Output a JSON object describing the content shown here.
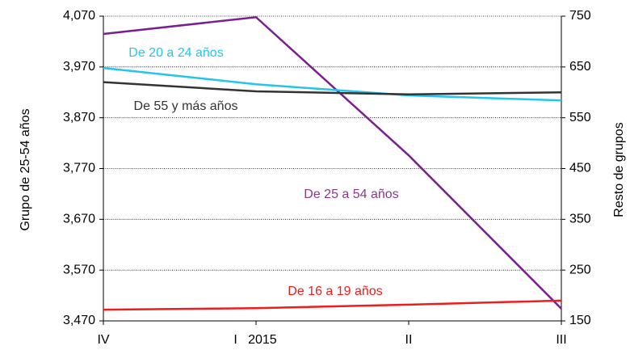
{
  "chart_data": {
    "type": "line",
    "y_label": "Grupo de 25-54 años",
    "y2_label": "Resto de grupos",
    "categories": [
      "IV",
      "I   2015",
      "II",
      "III"
    ],
    "ylim": [
      3470,
      4070
    ],
    "yticks": [
      {
        "value": 3470,
        "label": "3,470"
      },
      {
        "value": 3570,
        "label": "3,570"
      },
      {
        "value": 3670,
        "label": "3,670"
      },
      {
        "value": 3770,
        "label": "3,770"
      },
      {
        "value": 3870,
        "label": "3,870"
      },
      {
        "value": 3970,
        "label": "3,970"
      },
      {
        "value": 4070,
        "label": "4,070"
      }
    ],
    "y2lim": [
      150,
      750
    ],
    "y2ticks": [
      150,
      250,
      350,
      450,
      550,
      650,
      750
    ],
    "grid": true,
    "series": [
      {
        "name": "De 25 a 54 años",
        "color": "#7b1f8f",
        "label_color": "#8a3a86",
        "values": [
          4035,
          4068,
          3796,
          3494
        ]
      },
      {
        "name": "De 20 a 24 años",
        "color": "#22c5ee",
        "axis": "y2",
        "values": [
          648,
          616,
          594,
          584
        ]
      },
      {
        "name": "De 55 y más años",
        "color": "#333333",
        "axis": "y2",
        "values": [
          620,
          602,
          596,
          600
        ]
      },
      {
        "name": "De 16 a 19 años",
        "color": "#ee1c1c",
        "axis": "y2",
        "values": [
          172,
          175,
          182,
          190
        ]
      }
    ]
  }
}
